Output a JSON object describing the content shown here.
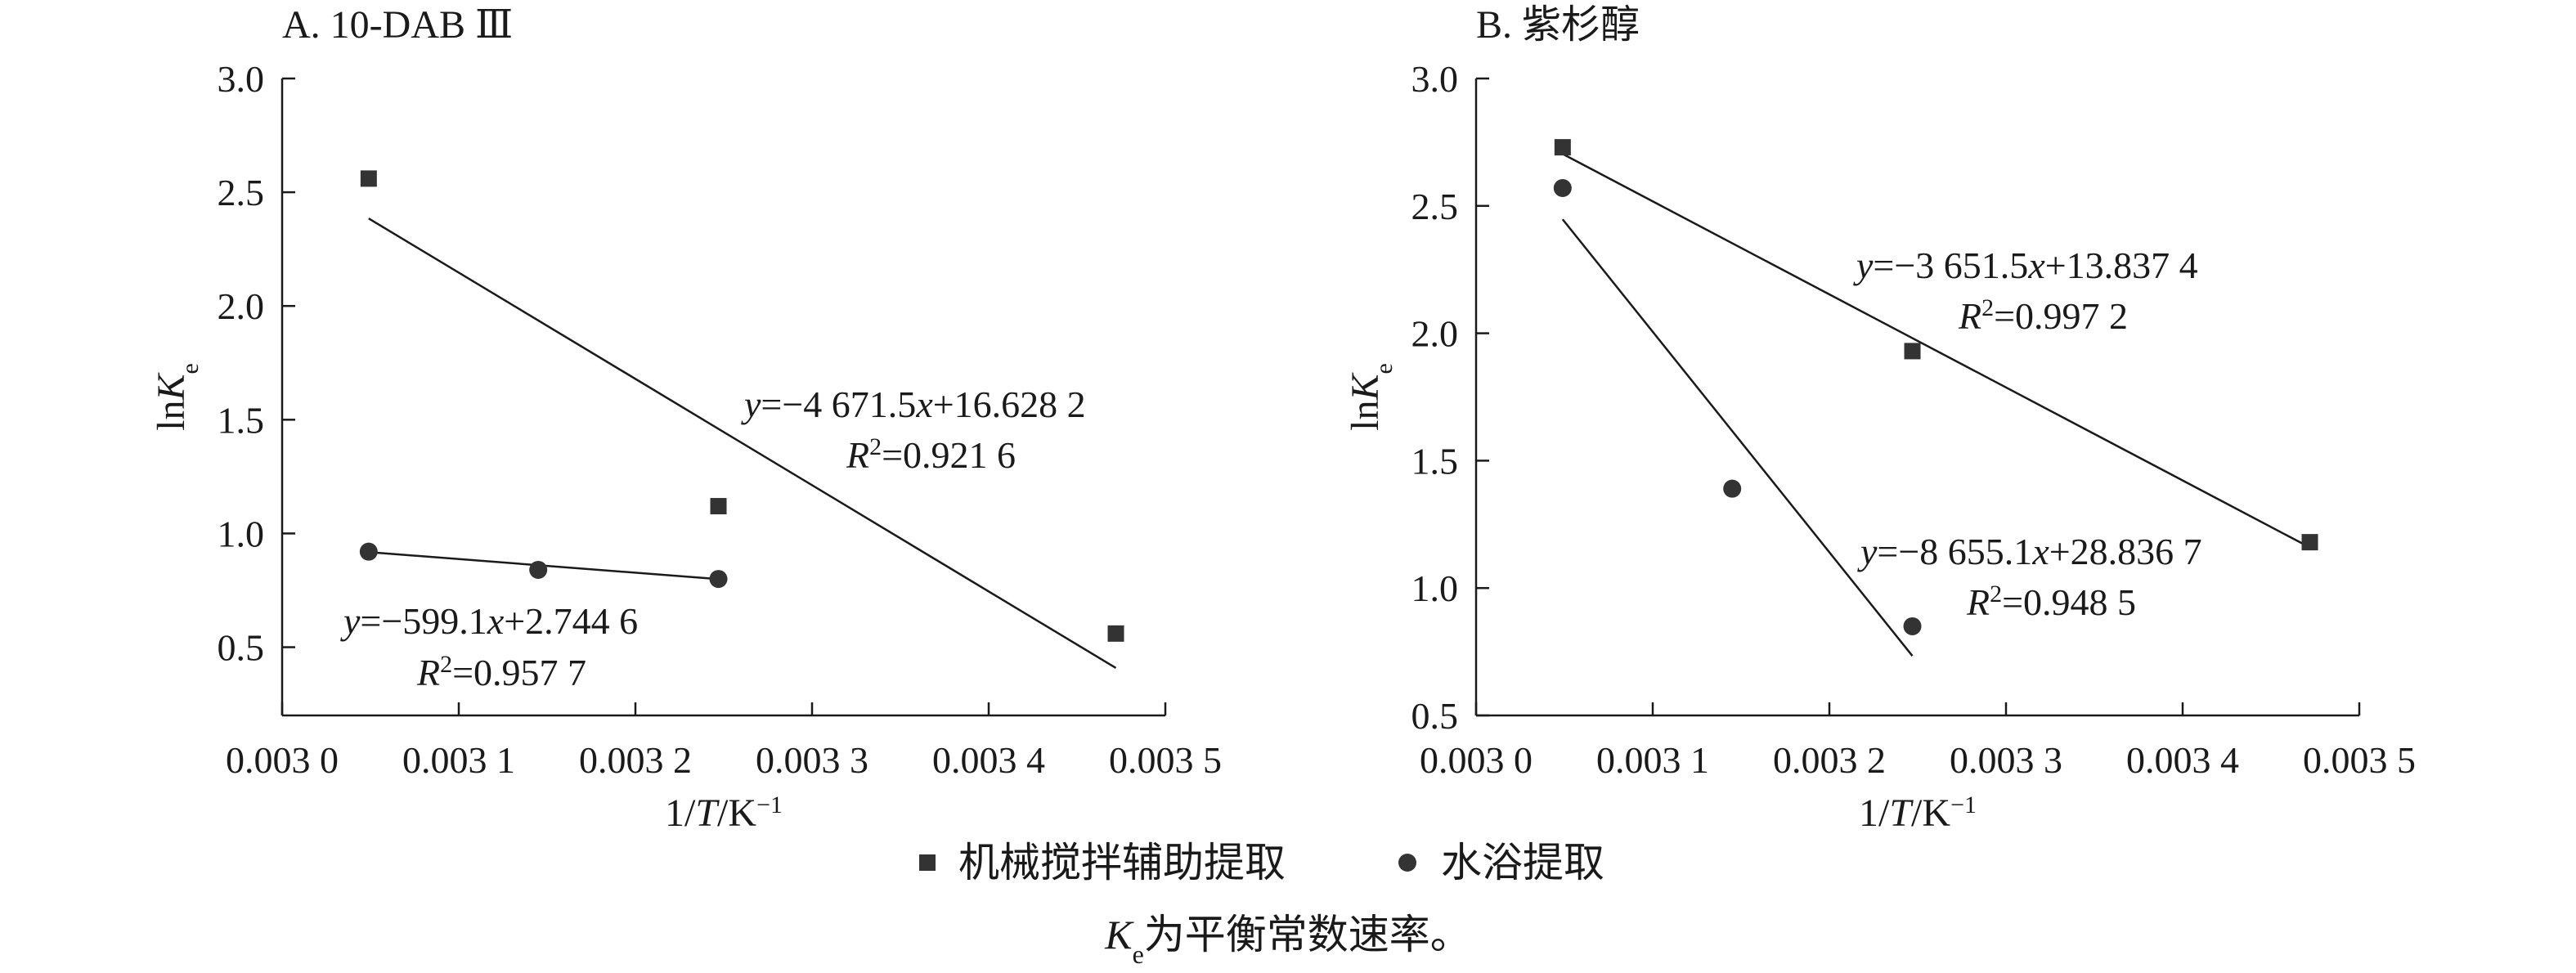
{
  "chart_data": [
    {
      "type": "scatter",
      "title": "A. 10-DAB Ⅲ",
      "xlabel": "1/T/K⁻¹",
      "ylabel": "lnKe",
      "xlim": [
        0.003,
        0.0035
      ],
      "ylim": [
        0.2,
        3.0
      ],
      "x_ticks": [
        0.003,
        0.0031,
        0.0032,
        0.0033,
        0.0034,
        0.0035
      ],
      "x_tick_labels": [
        "0.003 0",
        "0.003 1",
        "0.003 2",
        "0.003 3",
        "0.003 4",
        "0.003 5"
      ],
      "y_ticks": [
        0.5,
        1.0,
        1.5,
        2.0,
        2.5,
        3.0
      ],
      "y_tick_labels": [
        "0.5",
        "1.0",
        "1.5",
        "2.0",
        "2.5",
        "3.0"
      ],
      "series": [
        {
          "name": "机械搅拌辅助提取",
          "marker": "square",
          "x": [
            0.003049,
            0.003247,
            0.003472
          ],
          "y": [
            2.56,
            1.12,
            0.56
          ],
          "fit": {
            "slope": -4671.5,
            "intercept": 16.6282,
            "x_range": [
              0.003049,
              0.003472
            ]
          },
          "equation": "y=−4 671.5x+16.628 2",
          "r2": "R²=0.921 6"
        },
        {
          "name": "水浴提取",
          "marker": "circle",
          "x": [
            0.003049,
            0.003145,
            0.003247
          ],
          "y": [
            0.92,
            0.84,
            0.8
          ],
          "fit": {
            "slope": -599.1,
            "intercept": 2.7446,
            "x_range": [
              0.003049,
              0.003247
            ]
          },
          "equation": "y=−599.1x+2.744 6",
          "r2": "R²=0.957 7"
        }
      ]
    },
    {
      "type": "scatter",
      "title": "B. 紫杉醇",
      "xlabel": "1/T/K⁻¹",
      "ylabel": "lnKe",
      "xlim": [
        0.003,
        0.0035
      ],
      "ylim": [
        0.5,
        3.0
      ],
      "x_ticks": [
        0.003,
        0.0031,
        0.0032,
        0.0033,
        0.0034,
        0.0035
      ],
      "x_tick_labels": [
        "0.003 0",
        "0.003 1",
        "0.003 2",
        "0.003 3",
        "0.003 4",
        "0.003 5"
      ],
      "y_ticks": [
        0.5,
        1.0,
        1.5,
        2.0,
        2.5,
        3.0
      ],
      "y_tick_labels": [
        "0.5",
        "1.0",
        "1.5",
        "2.0",
        "2.5",
        "3.0"
      ],
      "series": [
        {
          "name": "机械搅拌辅助提取",
          "marker": "square",
          "x": [
            0.003049,
            0.003247,
            0.003472
          ],
          "y": [
            2.73,
            1.93,
            1.18
          ],
          "fit": {
            "slope": -3651.5,
            "intercept": 13.8374,
            "x_range": [
              0.003049,
              0.003472
            ]
          },
          "equation": "y=−3 651.5x+13.837 4",
          "r2": "R²=0.997 2"
        },
        {
          "name": "水浴提取",
          "marker": "circle",
          "x": [
            0.003049,
            0.003145,
            0.003247
          ],
          "y": [
            2.57,
            1.39,
            0.85
          ],
          "fit": {
            "slope": -8655.1,
            "intercept": 28.8367,
            "x_range": [
              0.003049,
              0.003247
            ]
          },
          "equation": "y=−8 655.1x+28.836 7",
          "r2": "R²=0.948 5"
        }
      ]
    }
  ],
  "legend": {
    "items": [
      {
        "label": "机械搅拌辅助提取",
        "marker": "square"
      },
      {
        "label": "水浴提取",
        "marker": "circle"
      }
    ],
    "placement": "bottom-center"
  },
  "caption": "Ke为平衡常数速率。",
  "colors": {
    "ink": "#1a1a1a",
    "marker": "#333333"
  }
}
